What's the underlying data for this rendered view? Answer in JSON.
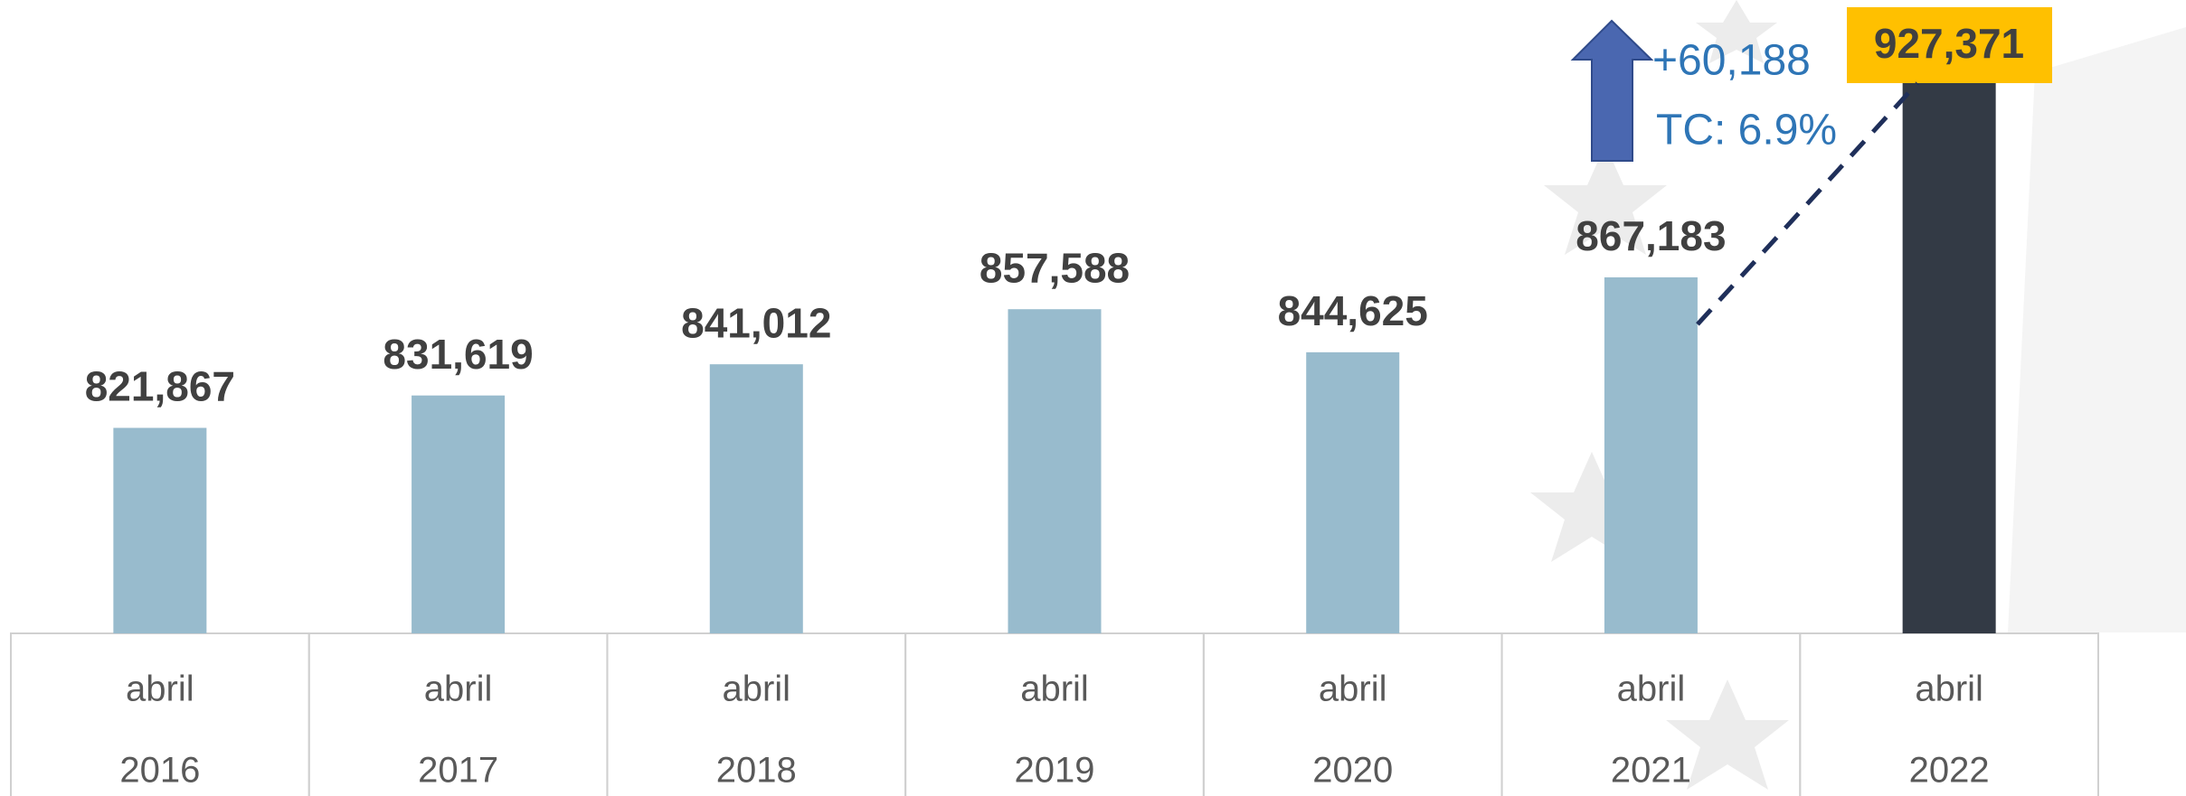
{
  "chart_data": {
    "type": "bar",
    "categories": [
      [
        "abril",
        "2016"
      ],
      [
        "abril",
        "2017"
      ],
      [
        "abril",
        "2018"
      ],
      [
        "abril",
        "2019"
      ],
      [
        "abril",
        "2020"
      ],
      [
        "abril",
        "2021"
      ],
      [
        "abril",
        "2022"
      ]
    ],
    "values": [
      821867,
      831619,
      841012,
      857588,
      844625,
      867183,
      927371
    ],
    "value_labels": [
      "821,867",
      "831,619",
      "841,012",
      "857,588",
      "844,625",
      "867,183",
      "927,371"
    ],
    "colors": [
      "#98bbcd",
      "#98bbcd",
      "#98bbcd",
      "#98bbcd",
      "#98bbcd",
      "#98bbcd",
      "#333a45"
    ],
    "ylim": [
      760000,
      930000
    ],
    "annotations": [
      "+60,188",
      "TC: 6.9%"
    ]
  }
}
